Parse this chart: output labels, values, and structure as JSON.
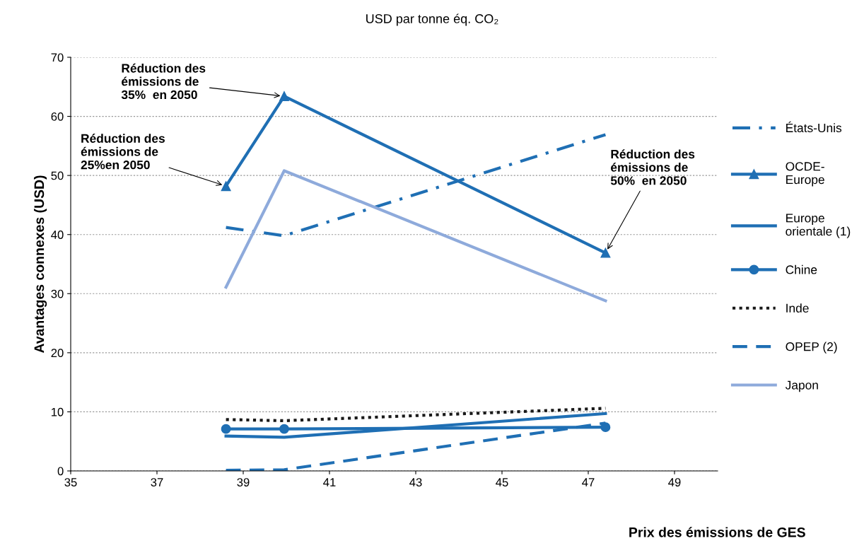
{
  "chart_data": {
    "type": "line",
    "title": "USD par tonne éq. CO₂",
    "xlabel": "Prix des émissions de GES",
    "ylabel": "Avantages connexes (USD)",
    "x": [
      38.6,
      39.95,
      47.4
    ],
    "series": [
      {
        "name": "États-Unis",
        "color": "#1f6fb4",
        "line_style": "dashdot",
        "marker": "none",
        "values": [
          41.2,
          39.8,
          56.9
        ]
      },
      {
        "name": "OCDE-\nEurope",
        "color": "#1f6fb4",
        "line_style": "solid",
        "marker": "triangle",
        "values": [
          48.2,
          63.4,
          36.9
        ]
      },
      {
        "name": "Europe\norientale (1)",
        "color": "#1f6fb4",
        "line_style": "solid",
        "marker": "none",
        "values": [
          5.9,
          5.7,
          9.7
        ]
      },
      {
        "name": "Chine",
        "color": "#1f6fb4",
        "line_style": "solid",
        "marker": "circle",
        "values": [
          7.1,
          7.1,
          7.4
        ]
      },
      {
        "name": "Inde",
        "color": "#1a1a1a",
        "line_style": "dotted",
        "marker": "none",
        "values": [
          8.7,
          8.5,
          10.6
        ]
      },
      {
        "name": "OPEP (2)",
        "color": "#1f6fb4",
        "line_style": "dashed",
        "marker": "none",
        "values": [
          0.1,
          0.2,
          8.1
        ]
      },
      {
        "name": "Japon",
        "color": "#8eaadb",
        "line_style": "solid",
        "marker": "none",
        "values": [
          31.1,
          50.8,
          28.8
        ]
      }
    ],
    "xlim": [
      35,
      50
    ],
    "xticks": [
      35,
      37,
      39,
      41,
      43,
      45,
      47,
      49
    ],
    "ylim": [
      0,
      70
    ],
    "yticks": [
      0,
      10,
      20,
      30,
      40,
      50,
      60,
      70
    ],
    "grid": "y",
    "legend": "right",
    "annotations": [
      {
        "text": "Réduction des\némissions de\n25%en 2050",
        "x": 38.6,
        "y": 48.2
      },
      {
        "text": "Réduction des\némissions de\n35%  en 2050",
        "x": 39.95,
        "y": 63.4
      },
      {
        "text": "Réduction des\némissions de\n50%  en 2050",
        "x": 47.4,
        "y": 36.9
      }
    ]
  }
}
